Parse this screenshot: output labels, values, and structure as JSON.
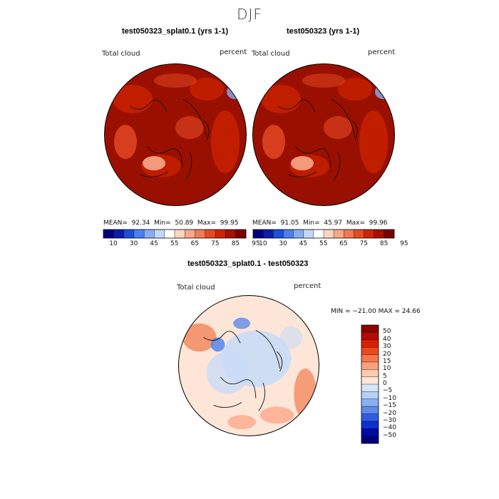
{
  "season_title": "DJF",
  "panels": {
    "left": {
      "title": "test050323_splat0.1 (yrs 1-1)",
      "variable": "Total cloud",
      "units": "percent",
      "stats": {
        "mean_label": "MEAN=",
        "mean": "92.34",
        "min_label": "Min=",
        "min": "50.89",
        "max_label": "Max=",
        "max": "99.95"
      }
    },
    "right": {
      "title": "test050323 (yrs 1-1)",
      "variable": "Total cloud",
      "units": "percent",
      "stats": {
        "mean_label": "MEAN=",
        "mean": "91.05",
        "min_label": "Min=",
        "min": "45.97",
        "max_label": "Max=",
        "max": "99.96"
      }
    },
    "diff": {
      "title": "test050323_splat0.1 - test050323",
      "variable": "Total cloud",
      "units": "percent",
      "minmax": "MIN = −21.00 MAX =  24.66"
    }
  },
  "horizontal_colorbar": {
    "colors": [
      "#00007a",
      "#0a1ea8",
      "#1d4fd8",
      "#4d80ee",
      "#87aef4",
      "#c2d8fb",
      "#ffffff",
      "#fcd5c0",
      "#f7a888",
      "#f17a55",
      "#e64a24",
      "#cf2405",
      "#a81000",
      "#7a0000"
    ],
    "tick_labels": [
      "10",
      "30",
      "45",
      "55",
      "65",
      "75",
      "85",
      "95"
    ]
  },
  "vertical_colorbar": {
    "colors": [
      "#8b0000",
      "#b50c00",
      "#d92000",
      "#ec4a1e",
      "#f7774b",
      "#fba07d",
      "#fdcab0",
      "#fde6d8",
      "#d6e6f8",
      "#b6d0f5",
      "#8aaff0",
      "#5f8ae8",
      "#2e5ce0",
      "#0f2fd0",
      "#000aa5",
      "#00007a"
    ],
    "tick_labels": [
      "50",
      "40",
      "30",
      "20",
      "15",
      "10",
      "5",
      "0",
      "−5",
      "−10",
      "−15",
      "−20",
      "−30",
      "−40",
      "−50"
    ]
  },
  "colors": {
    "cloud_base": "#9a1000",
    "cloud_mid": "#c52000",
    "cloud_light": "#e64a24",
    "ice_light": "#f7a888",
    "diff_base": "#fde6d8",
    "diff_blue": "#c9dcf6",
    "diff_red": "#f28a60",
    "coast": "#111111"
  }
}
